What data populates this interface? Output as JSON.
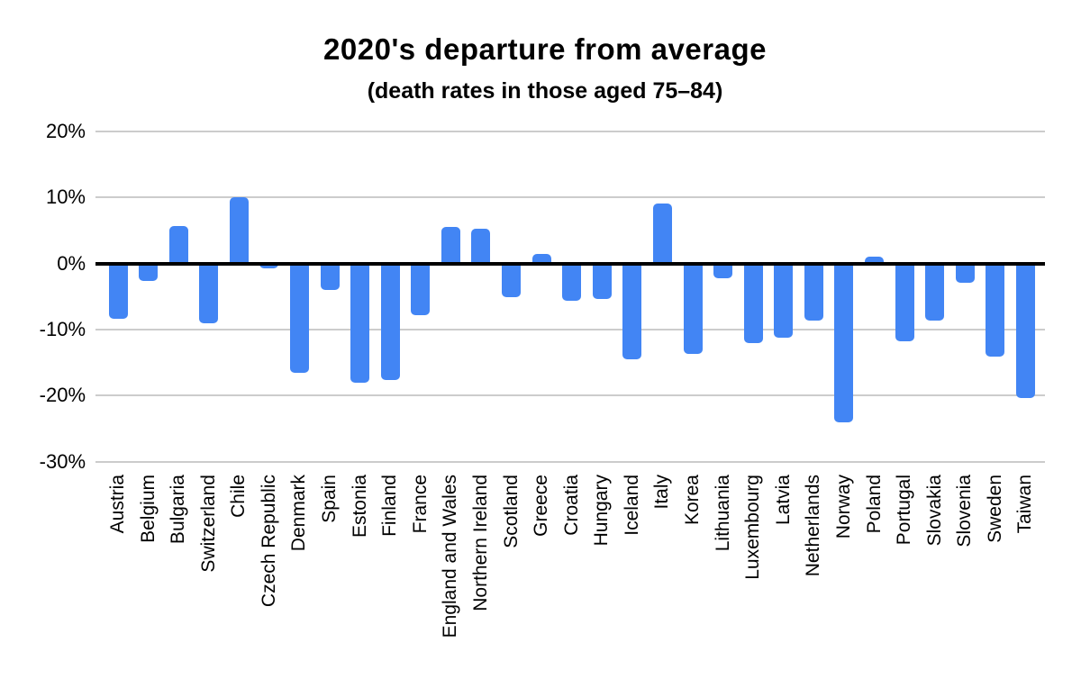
{
  "chart_data": {
    "type": "bar",
    "title": "2020's departure from average",
    "subtitle": "(death rates in those aged 75–84)",
    "categories": [
      "Austria",
      "Belgium",
      "Bulgaria",
      "Switzerland",
      "Chile",
      "Czech Republic",
      "Denmark",
      "Spain",
      "Estonia",
      "Finland",
      "France",
      "England and Wales",
      "Northern Ireland",
      "Scotland",
      "Greece",
      "Croatia",
      "Hungary",
      "Iceland",
      "Italy",
      "Korea",
      "Lithuania",
      "Luxembourg",
      "Latvia",
      "Netherlands",
      "Norway",
      "Poland",
      "Portugal",
      "Slovakia",
      "Slovenia",
      "Sweden",
      "Taiwan"
    ],
    "values": [
      -8.4,
      -2.7,
      5.6,
      -9.1,
      10.0,
      -0.8,
      -16.5,
      -4.0,
      -18.0,
      -17.6,
      -7.8,
      5.5,
      5.2,
      -5.1,
      1.4,
      -5.6,
      -5.4,
      -14.5,
      9.0,
      -13.7,
      -2.3,
      -12.0,
      -11.2,
      -8.6,
      -24.0,
      1.0,
      -11.8,
      -8.6,
      -2.9,
      -14.1,
      -20.3
    ],
    "xlabel": "",
    "ylabel": "",
    "ytick_labels": [
      "20%",
      "10%",
      "0%",
      "-10%",
      "-20%",
      "-30%"
    ],
    "ytick_values": [
      20,
      10,
      0,
      -10,
      -20,
      -30
    ],
    "ylim": [
      -30,
      20
    ],
    "grid": true,
    "legend_position": "none",
    "bar_color": "#4285F4",
    "grid_color": "#CCCCCC",
    "zero_line_color": "#000000",
    "text_color": "#000000"
  }
}
